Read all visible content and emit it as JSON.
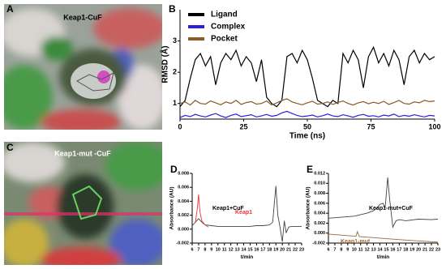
{
  "panel_labels": [
    "A",
    "B",
    "C",
    "D",
    "E"
  ],
  "images": [
    {
      "title": "Keap1-CuF"
    },
    {
      "title": "Keap1-mut -CuF"
    }
  ],
  "chart_data": [
    {
      "type": "line",
      "xlabel": "Time (ns)",
      "ylabel": "RMSD (Å)",
      "xlim": [
        0,
        100
      ],
      "ylim": [
        0.5,
        4
      ],
      "xticks": [
        0,
        25,
        50,
        75,
        100
      ],
      "yticks": [
        1,
        2,
        3
      ],
      "grid": false,
      "legend": "top-left",
      "x": [
        0,
        2,
        4,
        6,
        8,
        10,
        12,
        14,
        16,
        18,
        20,
        22,
        24,
        26,
        28,
        30,
        32,
        34,
        36,
        38,
        40,
        42,
        44,
        46,
        48,
        50,
        52,
        54,
        56,
        58,
        60,
        62,
        64,
        66,
        68,
        70,
        72,
        74,
        76,
        78,
        80,
        82,
        84,
        86,
        88,
        90,
        92,
        94,
        96,
        98,
        100
      ],
      "series": [
        {
          "name": "Ligand",
          "color": "#000000",
          "values": [
            0.9,
            1.1,
            1.8,
            2.4,
            2.6,
            2.2,
            2.5,
            1.6,
            2.3,
            2.6,
            2.4,
            2.7,
            2.2,
            2.5,
            2.3,
            1.7,
            2.4,
            1.2,
            1.0,
            0.9,
            1.1,
            2.5,
            2.6,
            2.3,
            2.7,
            2.4,
            1.8,
            1.1,
            1.0,
            0.9,
            1.1,
            1.0,
            2.6,
            2.3,
            2.7,
            2.4,
            1.5,
            2.5,
            2.8,
            2.3,
            2.6,
            2.2,
            2.7,
            2.4,
            1.6,
            2.5,
            2.7,
            2.3,
            2.6,
            2.4,
            2.5
          ]
        },
        {
          "name": "Complex",
          "color": "#2a1fe0",
          "values": [
            0.55,
            0.62,
            0.58,
            0.65,
            0.6,
            0.57,
            0.63,
            0.68,
            0.6,
            0.55,
            0.62,
            0.66,
            0.58,
            0.61,
            0.64,
            0.57,
            0.6,
            0.65,
            0.59,
            0.62,
            0.7,
            0.75,
            0.68,
            0.62,
            0.58,
            0.6,
            0.63,
            0.57,
            0.61,
            0.66,
            0.6,
            0.58,
            0.64,
            0.6,
            0.56,
            0.62,
            0.65,
            0.59,
            0.61,
            0.57,
            0.63,
            0.6,
            0.66,
            0.58,
            0.62,
            0.59,
            0.64,
            0.6,
            0.57,
            0.62,
            0.6
          ]
        },
        {
          "name": "Pocket",
          "color": "#8b5a2b",
          "values": [
            1.0,
            1.05,
            0.95,
            1.1,
            1.0,
            0.98,
            1.08,
            1.02,
            0.96,
            1.05,
            1.0,
            1.1,
            0.97,
            1.03,
            1.06,
            0.98,
            1.0,
            1.08,
            0.95,
            1.02,
            1.1,
            1.15,
            1.05,
            1.0,
            0.96,
            1.02,
            1.07,
            0.98,
            1.0,
            1.05,
            0.97,
            1.03,
            1.08,
            1.0,
            0.95,
            1.02,
            1.06,
            0.99,
            1.04,
            1.0,
            1.07,
            0.97,
            1.03,
            1.1,
            1.0,
            0.98,
            1.05,
            1.02,
            1.1,
            1.06,
            1.08
          ]
        }
      ]
    },
    {
      "type": "line",
      "xlabel": "t/min",
      "ylabel": "Absorbance (AU)",
      "xlim": [
        6,
        23
      ],
      "ylim": [
        -0.002,
        0.008
      ],
      "xticks": [
        6,
        7,
        8,
        9,
        10,
        11,
        12,
        13,
        14,
        15,
        16,
        17,
        18,
        19,
        20,
        21,
        22,
        23
      ],
      "yticks": [
        {
          "value": -0.002,
          "label": "-0.002"
        },
        {
          "value": 0,
          "label": "0.000"
        },
        {
          "value": 0.002,
          "label": "0.002"
        },
        {
          "value": 0.004,
          "label": "0.004"
        },
        {
          "value": 0.006,
          "label": "0.006"
        },
        {
          "value": 0.008,
          "label": "0.008"
        }
      ],
      "grid": false,
      "series": [
        {
          "name": "Keap1+CuF",
          "color": "#444444",
          "x": [
            6,
            6.5,
            7,
            7.5,
            8,
            9,
            10,
            11,
            12,
            13,
            14,
            15,
            16,
            17,
            18,
            18.5,
            19,
            19.3,
            19.6,
            20,
            20.3,
            20.6,
            21,
            21.5,
            22,
            23
          ],
          "values": [
            0.0005,
            0.001,
            0.0015,
            0.001,
            0.0006,
            0.0005,
            0.0004,
            0.0004,
            0.0004,
            0.0004,
            0.0004,
            0.0004,
            0.0005,
            0.0005,
            0.0006,
            0.001,
            0.0062,
            0.002,
            0.0005,
            -0.0018,
            0.0012,
            -0.0005,
            0.0003,
            0.0004,
            0.0004,
            0.0004
          ]
        },
        {
          "name": "Keap1",
          "color": "#e8343a",
          "x": [
            6.5,
            6.8,
            7,
            7.2,
            7.5,
            8,
            8.5
          ],
          "values": [
            0.001,
            0.003,
            0.005,
            0.0025,
            0.0012,
            0.0006,
            0.0003
          ]
        }
      ]
    },
    {
      "type": "line",
      "xlabel": "t/min",
      "ylabel": "Absorbance (AU)",
      "xlim": [
        6,
        23
      ],
      "ylim": [
        -0.002,
        0.012
      ],
      "xticks": [
        6,
        7,
        8,
        9,
        10,
        11,
        12,
        13,
        14,
        15,
        16,
        17,
        18,
        19,
        20,
        21,
        22,
        23
      ],
      "yticks": [
        {
          "value": -0.002,
          "label": "-0.002"
        },
        {
          "value": 0,
          "label": "0.000"
        },
        {
          "value": 0.002,
          "label": "0.002"
        },
        {
          "value": 0.004,
          "label": "0.004"
        },
        {
          "value": 0.006,
          "label": "0.006"
        },
        {
          "value": 0.008,
          "label": "0.008"
        },
        {
          "value": 0.01,
          "label": "0.010"
        },
        {
          "value": 0.012,
          "label": "0.012"
        }
      ],
      "grid": false,
      "series": [
        {
          "name": "Keap1-mut+CuF",
          "color": "#444444",
          "x": [
            6,
            8,
            10,
            12,
            13,
            13.5,
            14,
            14.5,
            14.8,
            15,
            15.2,
            15.5,
            16,
            16.5,
            17,
            18,
            20,
            22,
            23
          ],
          "values": [
            0.003,
            0.0032,
            0.0034,
            0.004,
            0.0045,
            0.005,
            0.0058,
            0.006,
            0.005,
            0.008,
            0.0112,
            0.007,
            0.0012,
            0.0025,
            0.0027,
            0.0025,
            0.0028,
            0.0027,
            0.0028
          ]
        },
        {
          "name": "Keap1-mut",
          "color": "#9b6a3c",
          "x": [
            6,
            10,
            10.3,
            10.5,
            10.8,
            14,
            18,
            23
          ],
          "values": [
            -0.0002,
            -0.0006,
            -0.0006,
            0.0003,
            -0.0007,
            -0.001,
            -0.0014,
            -0.0018
          ]
        }
      ]
    }
  ]
}
